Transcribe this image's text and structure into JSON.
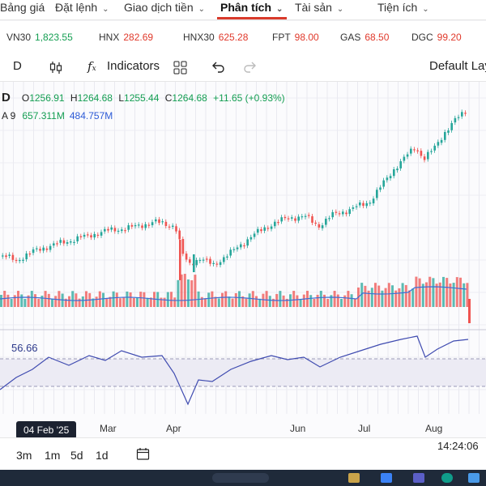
{
  "nav": {
    "items": [
      {
        "label": "Bảng giá",
        "x": 0
      },
      {
        "label": "Đặt lệnh",
        "x": 68,
        "chev": true
      },
      {
        "label": "Giao dịch tiền",
        "x": 153,
        "chev": true
      },
      {
        "label": "Phân tích",
        "x": 272,
        "chev": true,
        "active": true
      },
      {
        "label": "Tài sản",
        "x": 364,
        "chev": true
      },
      {
        "label": "Tiện ích",
        "x": 466,
        "chev": true
      }
    ]
  },
  "ticker": [
    {
      "symbol": "VN30",
      "value": "1,823.55",
      "color": "green"
    },
    {
      "symbol": "HNX",
      "value": "282.69",
      "color": "red"
    },
    {
      "symbol": "HNX30",
      "value": "625.28",
      "color": "red"
    },
    {
      "symbol": "FPT",
      "value": "98.00",
      "color": "red"
    },
    {
      "symbol": "GAS",
      "value": "68.50",
      "color": "red"
    },
    {
      "symbol": "DGC",
      "value": "99.20",
      "color": "red"
    },
    {
      "symbol": "",
      "value": "",
      "color": "red"
    }
  ],
  "toolbar": {
    "interval": "D",
    "indicators_label": "Indicators",
    "layout_label": "Default Layo"
  },
  "legend": {
    "interval": "D",
    "open_label": "O",
    "open": "1256.91",
    "high_label": "H",
    "high": "1264.68",
    "low_label": "L",
    "low": "1255.44",
    "close_label": "C",
    "close": "1264.68",
    "change": "+11.65 (+0.93%)",
    "vol_label": "A 9",
    "vol_value_1": "657.311M",
    "vol_value_2": "484.757M"
  },
  "rsi": {
    "value": "56.66"
  },
  "time_axis": {
    "cursor_date": "04 Feb '25",
    "ticks": [
      {
        "label": "Mar"
      },
      {
        "label": "Apr"
      },
      {
        "label": "Jun"
      },
      {
        "label": "Jul"
      },
      {
        "label": "Aug"
      }
    ]
  },
  "bottom": {
    "periods": [
      "3m",
      "1m",
      "5d",
      "1d"
    ],
    "clock": "14:24:06"
  },
  "colors": {
    "up": "#26a69a",
    "down": "#ef5350",
    "rsi_line": "#3f4bb0",
    "volume_ma": "#3b6fd6",
    "accent": "#d93a2b"
  }
}
